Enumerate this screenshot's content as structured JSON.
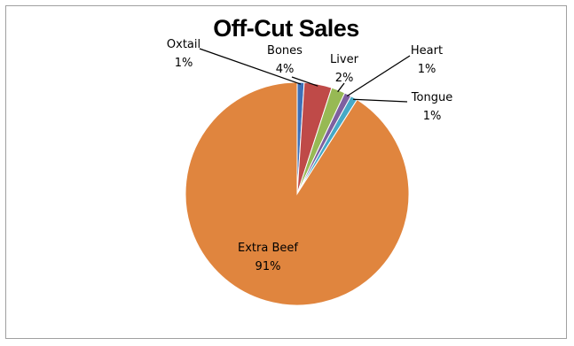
{
  "chart_data": {
    "type": "pie",
    "title": "Off-Cut Sales",
    "slices": [
      {
        "name": "Oxtail",
        "value": 1,
        "label": "1%",
        "color": "#3d70b8"
      },
      {
        "name": "Bones",
        "value": 4,
        "label": "4%",
        "color": "#bf4a48"
      },
      {
        "name": "Liver",
        "value": 2,
        "label": "2%",
        "color": "#97b954"
      },
      {
        "name": "Heart",
        "value": 1,
        "label": "1%",
        "color": "#7e60a0"
      },
      {
        "name": "Tongue",
        "value": 1,
        "label": "1%",
        "color": "#46a9c6"
      },
      {
        "name": "Extra Beef",
        "value": 91,
        "label": "91%",
        "color": "#e0853e"
      }
    ]
  }
}
